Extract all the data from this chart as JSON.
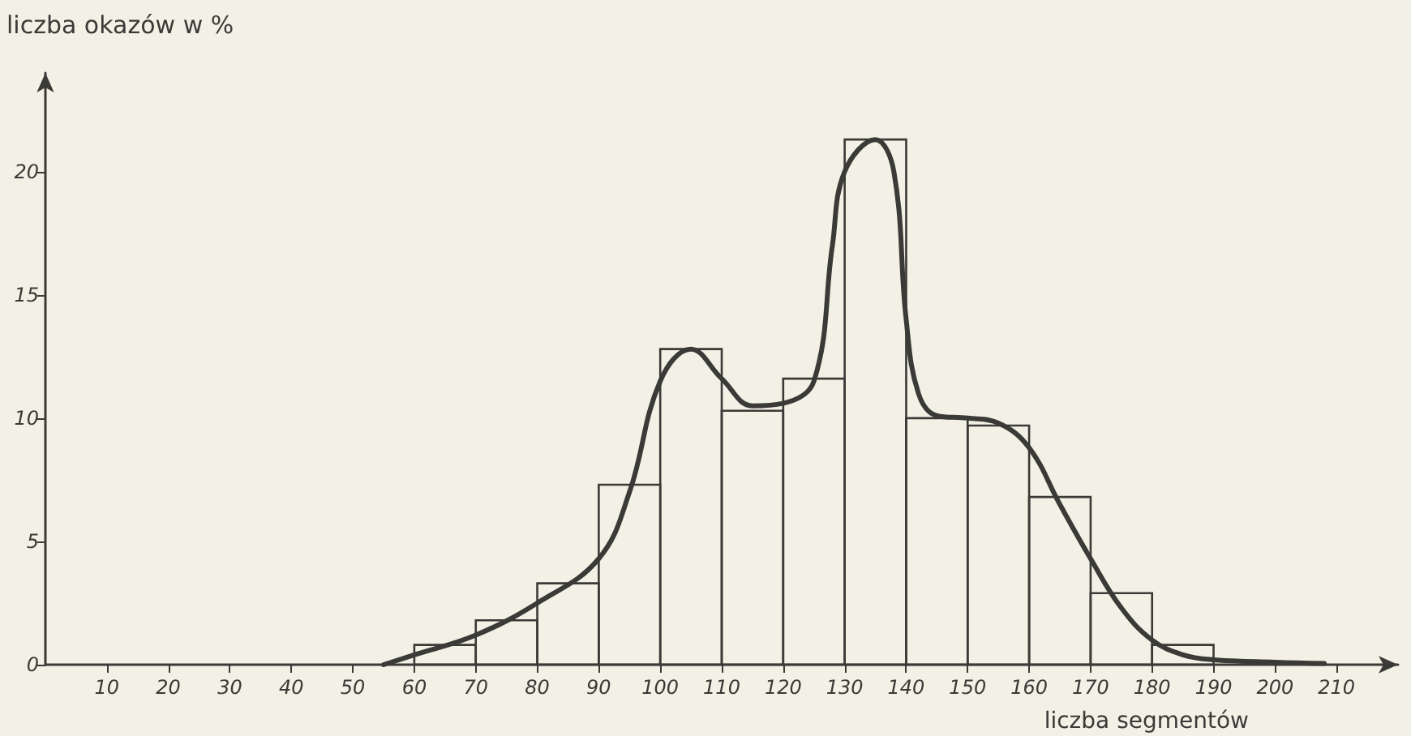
{
  "chart_data": {
    "type": "histogram",
    "xlabel": "liczba segmentów",
    "ylabel": "liczba okazów w %",
    "bins": [
      60,
      70,
      80,
      90,
      100,
      110,
      120,
      130,
      140,
      150,
      160,
      170,
      180,
      190
    ],
    "values": [
      0.8,
      1.8,
      3.3,
      7.3,
      12.8,
      10.3,
      11.6,
      21.3,
      10.0,
      9.7,
      6.8,
      2.9,
      0.8
    ],
    "color": "#3a3a36",
    "series": [
      {
        "type": "line",
        "color": "#3a3a36",
        "x": [
          55,
          60,
          70,
          80,
          90,
          95,
          100,
          105,
          110,
          115,
          120,
          125,
          128,
          130,
          135,
          138,
          140,
          142,
          145,
          150,
          155,
          160,
          165,
          170,
          175,
          180,
          185,
          190,
          200,
          208
        ],
        "values": [
          0,
          0.4,
          1.2,
          2.5,
          4.3,
          7,
          11.5,
          12.8,
          11.6,
          10.5,
          10.6,
          11.5,
          17,
          20,
          21.3,
          20,
          14,
          11,
          10.1,
          10,
          9.8,
          8.8,
          6.5,
          4.3,
          2.3,
          1,
          0.4,
          0.2,
          0.1,
          0.05
        ]
      }
    ],
    "xlim": [
      0,
      220
    ],
    "xticks": [
      10,
      20,
      30,
      40,
      50,
      60,
      70,
      80,
      90,
      100,
      110,
      120,
      130,
      140,
      150,
      160,
      170,
      180,
      190,
      200,
      210
    ],
    "ylim": [
      0,
      24
    ],
    "yticks": [
      0,
      5,
      10,
      15,
      20
    ],
    "grid": false,
    "marker": "none",
    "line_style": "solid"
  }
}
